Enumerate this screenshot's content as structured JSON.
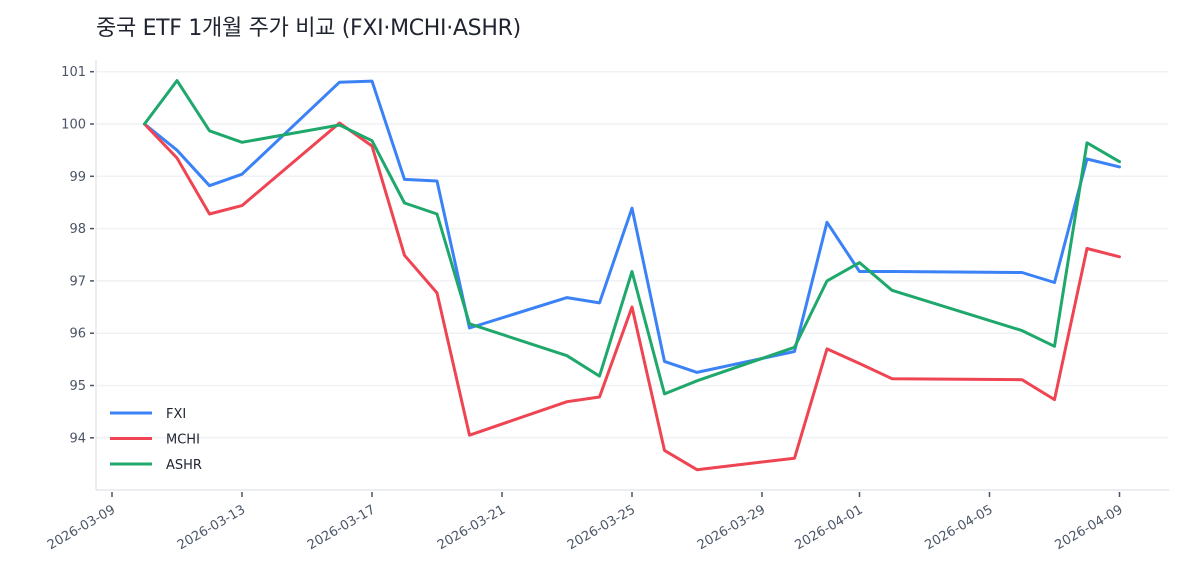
{
  "chart_data": {
    "type": "line",
    "title": "중국 ETF 1개월 주가 비교 (FXI·MCHI·ASHR)",
    "xlabel": "",
    "ylabel": "",
    "ylim": [
      93.0,
      101.3
    ],
    "yticks": [
      94,
      95,
      96,
      97,
      98,
      99,
      100,
      101
    ],
    "xticks": [
      "2026-03-09",
      "2026-03-13",
      "2026-03-17",
      "2026-03-21",
      "2026-03-25",
      "2026-03-29",
      "2026-04-01",
      "2026-04-05",
      "2026-04-09"
    ],
    "grid": "horizontal",
    "legend_position": "lower left",
    "x": [
      "2026-03-10",
      "2026-03-11",
      "2026-03-12",
      "2026-03-13",
      "2026-03-16",
      "2026-03-17",
      "2026-03-18",
      "2026-03-19",
      "2026-03-20",
      "2026-03-23",
      "2026-03-24",
      "2026-03-25",
      "2026-03-26",
      "2026-03-27",
      "2026-03-30",
      "2026-03-31",
      "2026-04-01",
      "2026-04-02",
      "2026-04-06",
      "2026-04-07",
      "2026-04-08",
      "2026-04-09"
    ],
    "series": [
      {
        "name": "FXI",
        "color": "#3b82f6",
        "values": [
          100.0,
          99.5,
          98.82,
          99.04,
          100.8,
          100.82,
          98.94,
          98.91,
          96.1,
          96.68,
          96.58,
          98.39,
          95.46,
          95.25,
          95.65,
          98.12,
          97.18,
          97.18,
          97.16,
          96.97,
          99.33,
          99.18
        ]
      },
      {
        "name": "MCHI",
        "color": "#ef4452",
        "values": [
          100.0,
          99.35,
          98.28,
          98.44,
          100.02,
          99.58,
          97.49,
          96.77,
          94.05,
          94.69,
          94.78,
          96.5,
          93.76,
          93.39,
          93.61,
          95.7,
          95.42,
          95.13,
          95.11,
          94.73,
          97.62,
          97.46
        ]
      },
      {
        "name": "ASHR",
        "color": "#1fa86b",
        "values": [
          100.0,
          100.83,
          99.87,
          99.65,
          99.98,
          99.68,
          98.49,
          98.28,
          96.18,
          95.57,
          95.18,
          97.18,
          94.84,
          95.09,
          95.73,
          97.0,
          97.35,
          96.82,
          96.05,
          95.75,
          99.64,
          99.28
        ]
      }
    ]
  }
}
